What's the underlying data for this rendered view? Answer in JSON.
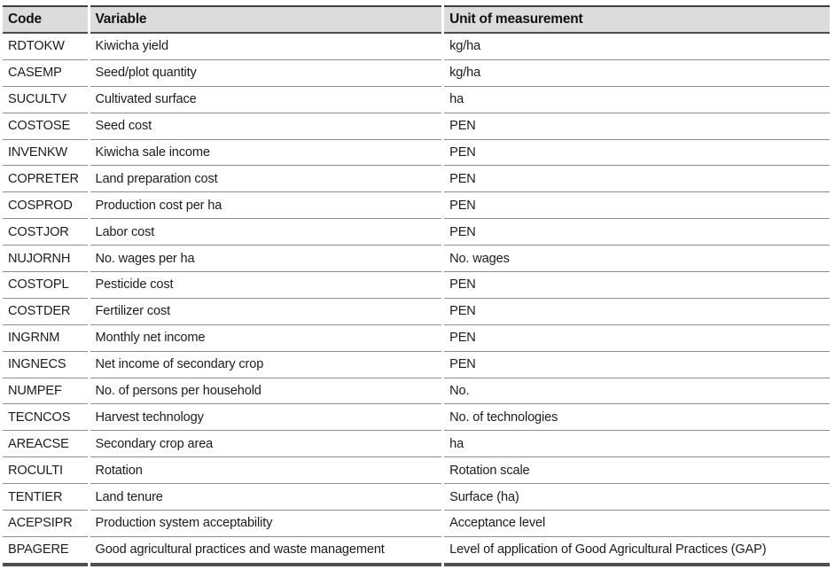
{
  "table": {
    "columns": [
      "Code",
      "Variable",
      "Unit of measurement"
    ],
    "rows": [
      {
        "code": "RDTOKW",
        "variable": "Kiwicha yield",
        "unit": "kg/ha"
      },
      {
        "code": "CASEMP",
        "variable": "Seed/plot quantity",
        "unit": "kg/ha"
      },
      {
        "code": "SUCULTV",
        "variable": "Cultivated surface",
        "unit": "ha"
      },
      {
        "code": "COSTOSE",
        "variable": "Seed cost",
        "unit": "PEN"
      },
      {
        "code": "INVENKW",
        "variable": "Kiwicha sale income",
        "unit": "PEN"
      },
      {
        "code": "COPRETER",
        "variable": "Land preparation cost",
        "unit": "PEN"
      },
      {
        "code": "COSPROD",
        "variable": "Production cost per ha",
        "unit": "PEN"
      },
      {
        "code": "COSTJOR",
        "variable": "Labor cost",
        "unit": "PEN"
      },
      {
        "code": "NUJORNH",
        "variable": "No. wages per ha",
        "unit": "No. wages"
      },
      {
        "code": "COSTOPL",
        "variable": "Pesticide cost",
        "unit": "PEN"
      },
      {
        "code": "COSTDER",
        "variable": "Fertilizer cost",
        "unit": "PEN"
      },
      {
        "code": "INGRNM",
        "variable": "Monthly net income",
        "unit": "PEN"
      },
      {
        "code": "INGNECS",
        "variable": "Net income of secondary crop",
        "unit": "PEN"
      },
      {
        "code": "NUMPEF",
        "variable": "No. of persons per household",
        "unit": "No."
      },
      {
        "code": "TECNCOS",
        "variable": "Harvest technology",
        "unit": "No. of technologies"
      },
      {
        "code": "AREACSE",
        "variable": "Secondary crop area",
        "unit": "ha"
      },
      {
        "code": "ROCULTI",
        "variable": "Rotation",
        "unit": "Rotation scale"
      },
      {
        "code": "TENTIER",
        "variable": "Land tenure",
        "unit": "Surface (ha)"
      },
      {
        "code": "ACEPSIPR",
        "variable": "Production system acceptability",
        "unit": "Acceptance level"
      },
      {
        "code": "BPAGERE",
        "variable": "Good agricultural practices and waste management",
        "unit": "Level of application of Good Agricultural Practices (GAP)"
      }
    ]
  }
}
